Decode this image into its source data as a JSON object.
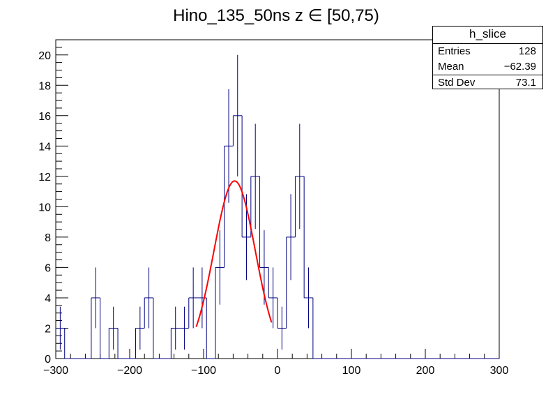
{
  "chart_data": {
    "type": "bar",
    "title": "Hino_135_50ns z  ∈ [50,75)",
    "xlabel": "",
    "ylabel": "",
    "xlim": [
      -300,
      300
    ],
    "ylim": [
      0,
      21
    ],
    "x_ticks": [
      "−300",
      "−200",
      "−100",
      "0",
      "100",
      "200",
      "300"
    ],
    "y_ticks": [
      "0",
      "2",
      "4",
      "6",
      "8",
      "10",
      "12",
      "14",
      "16",
      "18",
      "20"
    ],
    "bin_width": 12,
    "bin_edges_start": -300,
    "values": [
      2,
      0,
      0,
      0,
      4,
      0,
      2,
      0,
      0,
      2,
      4,
      0,
      0,
      2,
      2,
      4,
      4,
      0,
      6,
      14,
      16,
      8,
      12,
      6,
      4,
      2,
      8,
      12,
      4,
      0,
      0,
      0,
      0,
      0,
      0,
      0,
      0,
      0,
      0,
      0,
      0,
      0,
      0,
      0,
      0,
      0,
      0,
      0,
      0,
      0
    ],
    "fit": {
      "function": "gaussian",
      "amplitude": 11.7,
      "mean": -58,
      "sigma": 28,
      "range": [
        -110,
        -8
      ]
    },
    "histogram_color": "#000080",
    "fit_color": "#ff0000",
    "stats": {
      "name": "h_slice",
      "entries_label": "Entries",
      "entries": "128",
      "mean_label": "Mean",
      "mean": "−62.39",
      "std_label": "Std Dev",
      "std": "73.1"
    }
  }
}
